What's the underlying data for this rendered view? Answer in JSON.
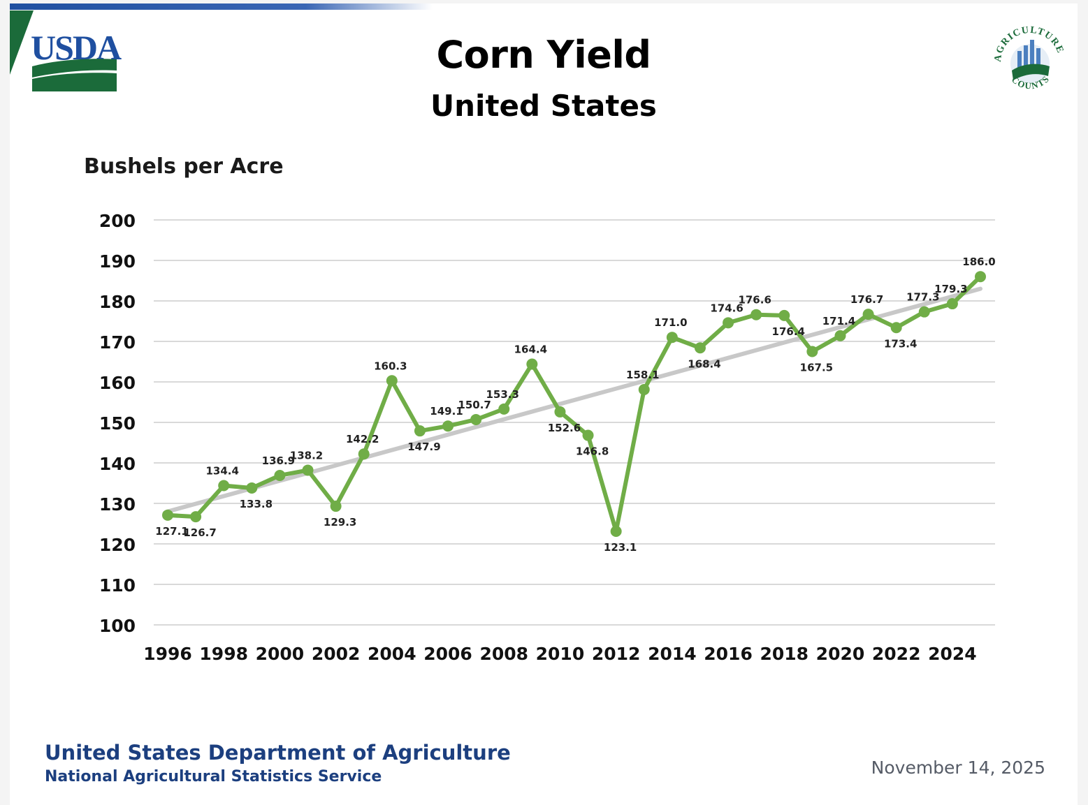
{
  "header": {
    "logo_text": "USDA",
    "badge_text_top": "AGRICULTURE",
    "badge_text_bottom": "COUNTS"
  },
  "footer": {
    "org": "United States Department of Agriculture",
    "sub": "National Agricultural Statistics Service",
    "date": "November 14, 2025"
  },
  "colors": {
    "series": "#70ad47",
    "trend": "#c8c8c8",
    "grid": "#d9d9d9",
    "footer_text": "#1c3f7f",
    "logo_blue": "#1f4fa0",
    "logo_green": "#1b6b3a"
  },
  "chart_data": {
    "type": "line",
    "title": "Corn Yield",
    "subtitle": "United States",
    "ylabel": "Bushels per Acre",
    "xlabel": "",
    "ylim": [
      100,
      200
    ],
    "yticks": [
      100,
      110,
      120,
      130,
      140,
      150,
      160,
      170,
      180,
      190,
      200
    ],
    "xticks": [
      "1996",
      "1998",
      "2000",
      "2002",
      "2004",
      "2006",
      "2008",
      "2010",
      "2012",
      "2014",
      "2016",
      "2018",
      "2020",
      "2022",
      "2024"
    ],
    "grid": true,
    "legend": "none",
    "x": [
      1996,
      1997,
      1998,
      1999,
      2000,
      2001,
      2002,
      2003,
      2004,
      2005,
      2006,
      2007,
      2008,
      2009,
      2010,
      2011,
      2012,
      2013,
      2014,
      2015,
      2016,
      2017,
      2018,
      2019,
      2020,
      2021,
      2022,
      2023,
      2024,
      2025
    ],
    "series": [
      {
        "values": [
          127.1,
          126.7,
          134.4,
          133.8,
          136.9,
          138.2,
          129.3,
          142.2,
          160.3,
          147.9,
          149.1,
          150.7,
          153.3,
          164.4,
          152.6,
          146.8,
          123.1,
          158.1,
          171.0,
          168.4,
          174.6,
          176.6,
          176.4,
          167.5,
          171.4,
          176.7,
          173.4,
          177.3,
          179.3,
          186.0
        ],
        "labels": [
          "127.1",
          "126.7",
          "134.4",
          "133.8",
          "136.9",
          "138.2",
          "129.3",
          "142.2",
          "160.3",
          "147.9",
          "149.1",
          "150.7",
          "153.3",
          "164.4",
          "152.6",
          "146.8",
          "123.1",
          "158.1",
          "171.0",
          "168.4",
          "174.6",
          "176.6",
          "176.4",
          "167.5",
          "171.4",
          "176.7",
          "173.4",
          "177.3",
          "179.3",
          "186.0"
        ]
      },
      {
        "type": "trend",
        "values_at_ends": [
          128,
          183
        ]
      }
    ]
  }
}
